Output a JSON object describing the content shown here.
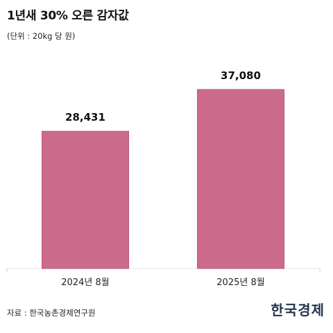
{
  "chart_data": {
    "type": "bar",
    "title": "1년새 30% 오른 감자값",
    "subtitle": "(단위 : 20kg 당 원)",
    "categories": [
      "2024년 8월",
      "2025년 8월"
    ],
    "values": [
      28431,
      37080
    ],
    "value_labels": [
      "28,431",
      "37,080"
    ],
    "xlabel": "",
    "ylabel": "",
    "ylim": [
      0,
      37080
    ],
    "grid": false,
    "legend": "none",
    "bar_color": "#cc6b8c",
    "bar_edge_color": "#c0557b"
  },
  "footer": {
    "source": "자료 : 한국농촌경제연구원",
    "logo": "한국경제"
  }
}
